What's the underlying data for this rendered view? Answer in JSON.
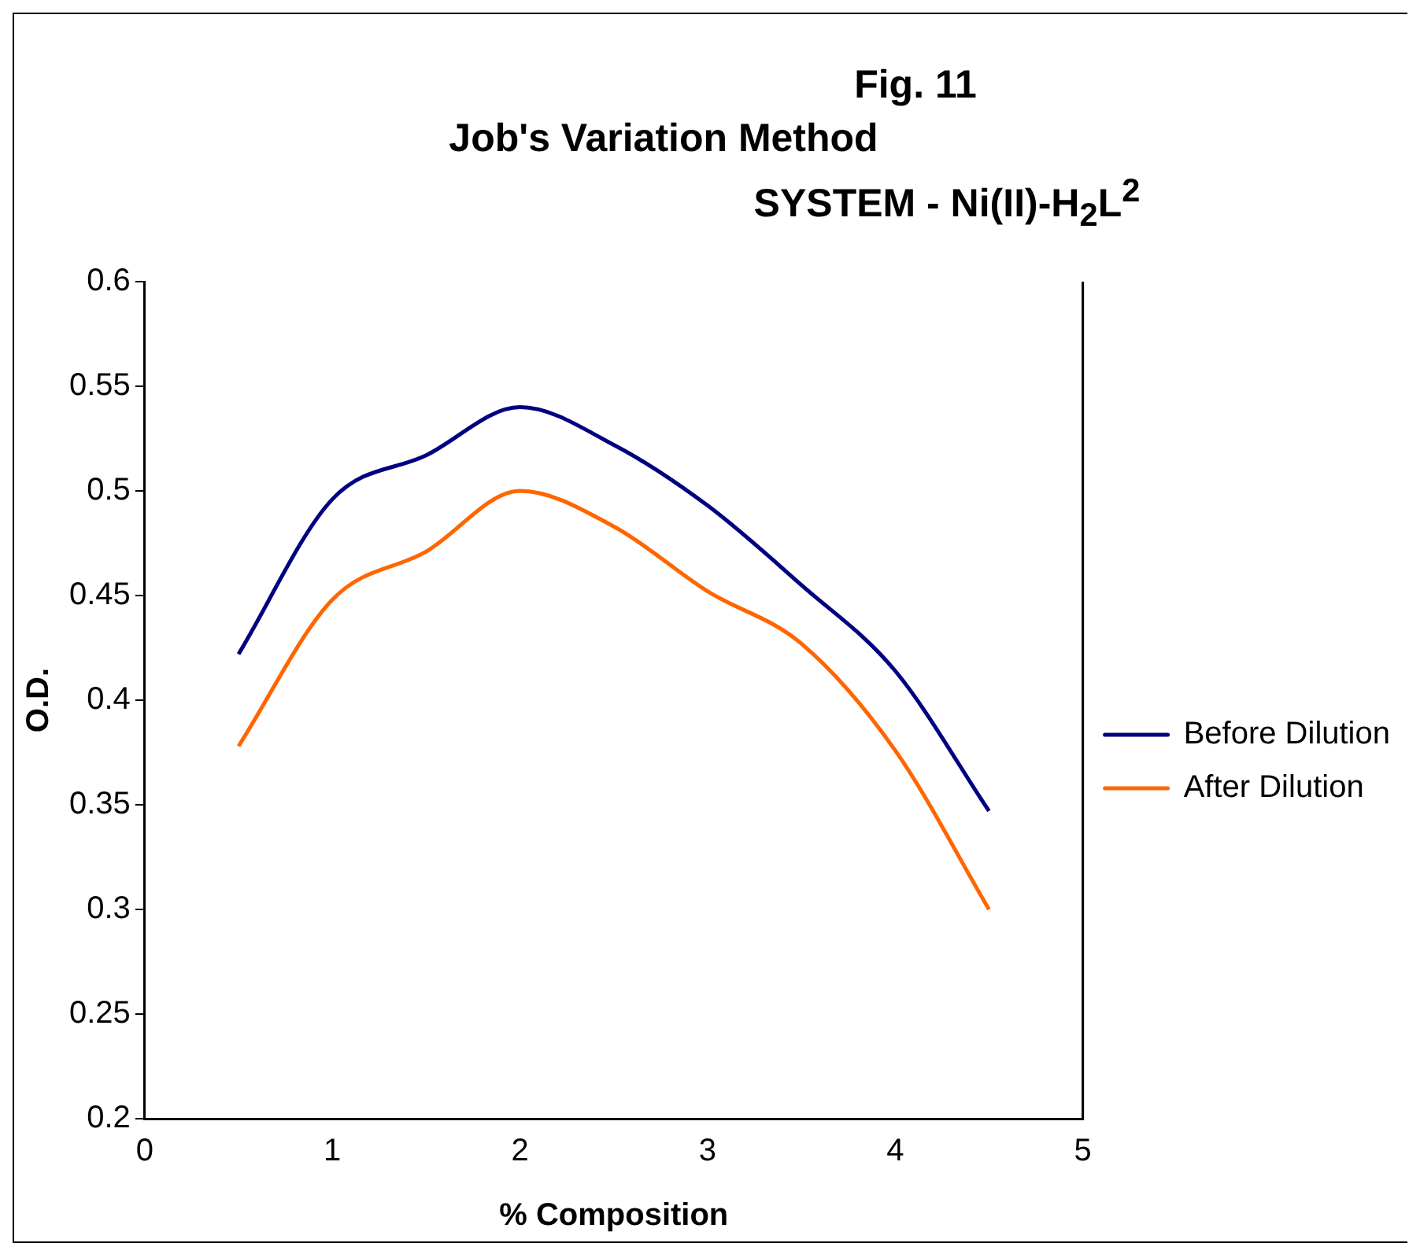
{
  "chart_data": {
    "type": "line",
    "title": "Fig. 11\nJob's Variation Method\nSYSTEM - Ni(II)-H$_{2}$L$^{2}$",
    "xlabel": "% Composition",
    "ylabel": "O.D.",
    "x": [
      0.5,
      1,
      1.5,
      2,
      2.5,
      3,
      3.5,
      4,
      4.5
    ],
    "series": [
      {
        "name": "Before Dilution",
        "color": "#000080",
        "values": [
          0.422,
          0.496,
          0.517,
          0.54,
          0.522,
          0.493,
          0.455,
          0.414,
          0.347
        ]
      },
      {
        "name": "After Dilution",
        "color": "#ff6600",
        "values": [
          0.378,
          0.448,
          0.471,
          0.5,
          0.483,
          0.452,
          0.427,
          0.376,
          0.3
        ]
      }
    ],
    "xlim": [
      0,
      5
    ],
    "xticks": [
      0,
      1,
      2,
      3,
      4,
      5
    ],
    "ylim": [
      0.2,
      0.6
    ],
    "yticks": [
      0.2,
      0.25,
      0.3,
      0.35,
      0.4,
      0.45,
      0.5,
      0.55,
      0.6
    ],
    "grid": false,
    "legend": "right",
    "marker": "none",
    "line_style": "solid"
  }
}
